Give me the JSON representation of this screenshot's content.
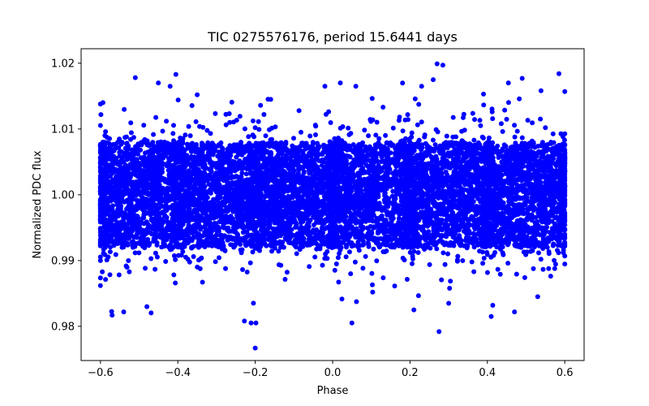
{
  "chart_data": {
    "type": "scatter",
    "title": "TIC 0275576176, period 15.6441 days",
    "xlabel": "Phase",
    "ylabel": "Normalized PDC flux",
    "xlim": [
      -0.65,
      0.65
    ],
    "ylim": [
      0.9748,
      1.0222
    ],
    "xticks": [
      -0.6,
      -0.4,
      -0.2,
      0.0,
      0.2,
      0.4,
      0.6
    ],
    "xtick_labels": [
      "−0.6",
      "−0.4",
      "−0.2",
      "0.0",
      "0.2",
      "0.4",
      "0.6"
    ],
    "yticks": [
      0.98,
      0.99,
      1.0,
      1.01,
      1.02
    ],
    "ytick_labels": [
      "0.98",
      "0.99",
      "1.00",
      "1.01",
      "1.02"
    ],
    "grid": false,
    "marker_color": "#0000ff",
    "series": [
      {
        "name": "PDC flux",
        "x_range": [
          -0.6,
          0.6
        ],
        "center": 1.0,
        "core_halfwidth": 0.008,
        "n_points": 9000,
        "dense_bands": [
          -0.6,
          -0.4,
          -0.2,
          0.0,
          0.2,
          0.4,
          0.6
        ],
        "outliers": [
          [
            -0.51,
            1.0178
          ],
          [
            -0.42,
            1.0165
          ],
          [
            -0.405,
            1.0183
          ],
          [
            -0.2,
            0.9767
          ],
          [
            -0.228,
            0.9808
          ],
          [
            0.05,
            0.9805
          ],
          [
            -0.02,
            1.0165
          ],
          [
            0.06,
            1.0165
          ],
          [
            0.27,
            1.0199
          ],
          [
            0.285,
            1.0197
          ],
          [
            0.275,
            0.9792
          ],
          [
            0.49,
            1.0177
          ],
          [
            0.585,
            1.0184
          ],
          [
            0.6,
            1.0157
          ],
          [
            -0.54,
            0.9822
          ],
          [
            -0.57,
            0.9817
          ],
          [
            -0.48,
            0.983
          ],
          [
            0.21,
            0.9825
          ],
          [
            0.3,
            0.9835
          ],
          [
            0.47,
            0.9822
          ],
          [
            0.53,
            0.9845
          ],
          [
            -0.6,
            1.0138
          ],
          [
            0.23,
            1.0165
          ],
          [
            0.26,
            1.0175
          ],
          [
            -0.35,
            1.0152
          ],
          [
            0.39,
            1.0153
          ],
          [
            0.41,
            0.9815
          ],
          [
            -0.16,
            1.0145
          ]
        ]
      }
    ]
  }
}
